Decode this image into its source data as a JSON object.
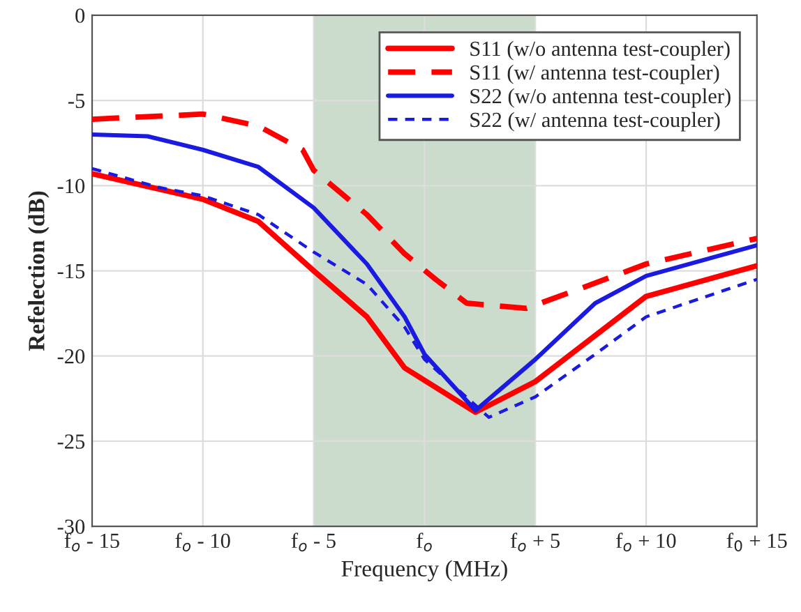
{
  "chart_data": {
    "type": "line",
    "xlabel": "Frequency (MHz)",
    "ylabel": "Refelection (dB)",
    "xlim": [
      -15,
      15
    ],
    "ylim": [
      -30,
      0
    ],
    "xticks": [
      {
        "value": -15,
        "label": "f$_{o}$ - 15"
      },
      {
        "value": -10,
        "label": "f$_{o}$ - 10"
      },
      {
        "value": -5,
        "label": "f$_{o}$ - 5"
      },
      {
        "value": 0,
        "label": "f$_{o}$"
      },
      {
        "value": 5,
        "label": "f$_{o}$ + 5"
      },
      {
        "value": 10,
        "label": "f$_{o}$ + 10"
      },
      {
        "value": 15,
        "label": "f$_{0}$ + 15"
      }
    ],
    "yticks": [
      -30,
      -25,
      -20,
      -15,
      -10,
      -5,
      0
    ],
    "grid": true,
    "legend": "top right",
    "bands": [
      {
        "axis": "x",
        "from": -5,
        "to": 5,
        "color": "#ccdccc"
      }
    ],
    "series": [
      {
        "name": "S11 (w/o antenna test-coupler)",
        "color": "#ff0000",
        "line_style": "solid",
        "x": [
          -15,
          -10,
          -7.5,
          -5,
          -2.6,
          -0.9,
          2.3,
          5,
          7.7,
          10,
          15
        ],
        "values": [
          -9.3,
          -10.8,
          -12.1,
          -15.0,
          -17.7,
          -20.7,
          -23.3,
          -21.5,
          -18.8,
          -16.5,
          -14.7
        ]
      },
      {
        "name": "S11 (w/ antenna test-coupler)",
        "color": "#ff0000",
        "line_style": "dashed",
        "x": [
          -15,
          -10,
          -7.5,
          -5.5,
          -5,
          -2.6,
          -0.9,
          0.5,
          1.9,
          4.6,
          6.7,
          10,
          15
        ],
        "values": [
          -6.1,
          -5.8,
          -6.5,
          -7.9,
          -9.1,
          -11.7,
          -14.0,
          -15.5,
          -16.9,
          -17.2,
          -16.2,
          -14.6,
          -13.1
        ]
      },
      {
        "name": "S22 (w/o antenna test-coupler)",
        "color": "#1a1ae0",
        "line_style": "solid",
        "x": [
          -15,
          -12.5,
          -10,
          -7.5,
          -5,
          -2.6,
          -0.9,
          0,
          2.3,
          5,
          7.7,
          10,
          15
        ],
        "values": [
          -7.0,
          -7.1,
          -7.9,
          -8.9,
          -11.3,
          -14.6,
          -17.7,
          -19.9,
          -23.2,
          -20.2,
          -16.9,
          -15.3,
          -13.5
        ]
      },
      {
        "name": "S22 (w/ antenna test-coupler)",
        "color": "#1a1ae0",
        "line_style": "dotted",
        "x": [
          -15,
          -12,
          -10,
          -7.5,
          -5,
          -2.6,
          -0.9,
          0,
          2.9,
          5,
          7.7,
          10,
          15
        ],
        "values": [
          -9.0,
          -10.1,
          -10.6,
          -11.7,
          -13.9,
          -15.8,
          -18.3,
          -20.2,
          -23.6,
          -22.4,
          -19.9,
          -17.7,
          -15.5
        ]
      }
    ]
  }
}
